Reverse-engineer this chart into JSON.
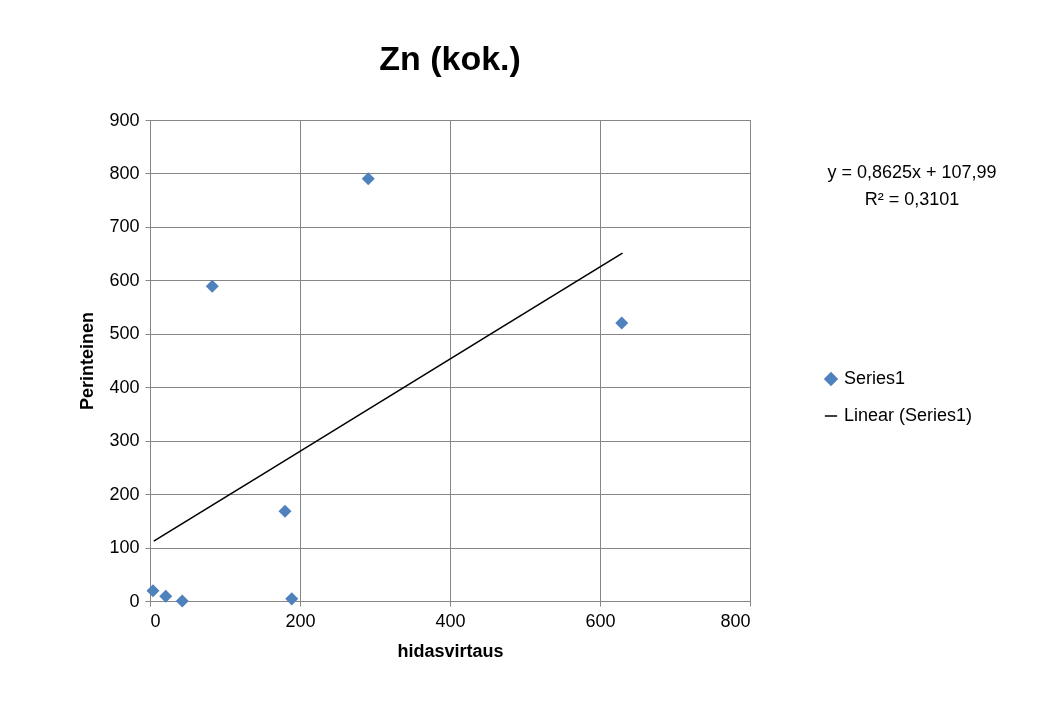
{
  "chart_data": {
    "type": "scatter",
    "title": "Zn (kok.)",
    "xlabel": "hidasvirtaus",
    "ylabel": "Perinteinen",
    "series": [
      {
        "name": "Series1",
        "marker": "diamond",
        "color": "#4f81bd",
        "x": [
          4,
          21,
          43,
          83,
          180,
          189,
          291,
          629
        ],
        "values": [
          19,
          9,
          0,
          589,
          168,
          4,
          790,
          520
        ]
      },
      {
        "name": "Linear (Series1)",
        "type": "line",
        "color": "#000000",
        "x": [
          5,
          630
        ],
        "values": [
          112,
          651
        ]
      }
    ],
    "xlim": [
      0,
      800
    ],
    "xticks": [
      0,
      200,
      400,
      600,
      800
    ],
    "ylim": [
      0,
      900
    ],
    "yticks": [
      0,
      100,
      200,
      300,
      400,
      500,
      600,
      700,
      800,
      900
    ],
    "grid": true,
    "legend": "right",
    "line_style": "solid",
    "annotations": [
      "y = 0,8625x + 107,99",
      "R² = 0,3101"
    ]
  }
}
